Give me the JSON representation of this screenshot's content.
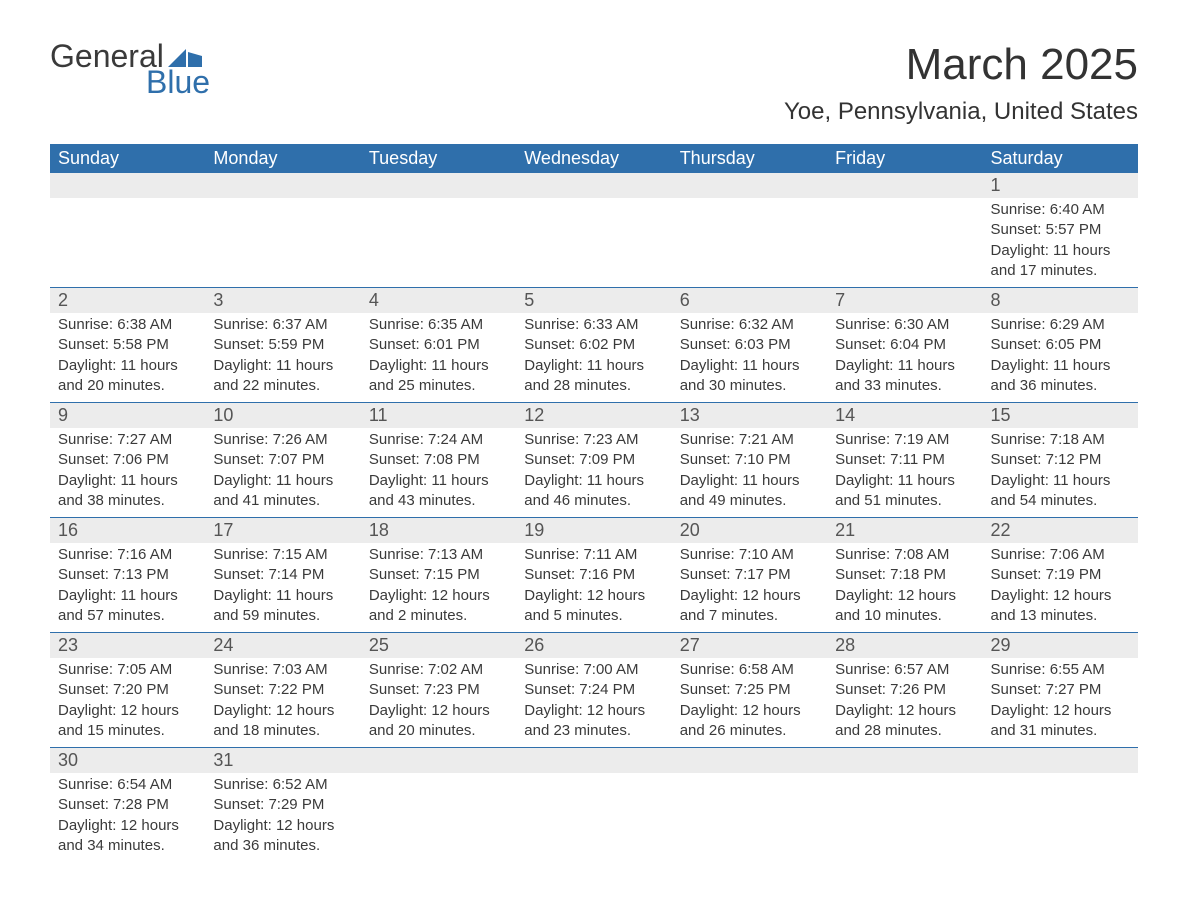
{
  "logo": {
    "word1": "General",
    "word2": "Blue"
  },
  "title": "March 2025",
  "location": "Yoe, Pennsylvania, United States",
  "colors": {
    "header_bg": "#2f6fab",
    "header_fg": "#ffffff",
    "daynum_bg": "#ececec",
    "row_border": "#2f6fab",
    "text": "#3a3a3a",
    "logo_blue": "#2f6fab"
  },
  "typography": {
    "month_title_pt": 44,
    "location_pt": 24,
    "header_pt": 18,
    "daynum_pt": 18,
    "body_pt": 15
  },
  "layout": {
    "type": "calendar-table",
    "columns": 7,
    "week_rows": 6
  },
  "weekdays": [
    "Sunday",
    "Monday",
    "Tuesday",
    "Wednesday",
    "Thursday",
    "Friday",
    "Saturday"
  ],
  "weeks": [
    [
      null,
      null,
      null,
      null,
      null,
      null,
      {
        "n": "1",
        "sr": "Sunrise: 6:40 AM",
        "ss": "Sunset: 5:57 PM",
        "d1": "Daylight: 11 hours",
        "d2": "and 17 minutes."
      }
    ],
    [
      {
        "n": "2",
        "sr": "Sunrise: 6:38 AM",
        "ss": "Sunset: 5:58 PM",
        "d1": "Daylight: 11 hours",
        "d2": "and 20 minutes."
      },
      {
        "n": "3",
        "sr": "Sunrise: 6:37 AM",
        "ss": "Sunset: 5:59 PM",
        "d1": "Daylight: 11 hours",
        "d2": "and 22 minutes."
      },
      {
        "n": "4",
        "sr": "Sunrise: 6:35 AM",
        "ss": "Sunset: 6:01 PM",
        "d1": "Daylight: 11 hours",
        "d2": "and 25 minutes."
      },
      {
        "n": "5",
        "sr": "Sunrise: 6:33 AM",
        "ss": "Sunset: 6:02 PM",
        "d1": "Daylight: 11 hours",
        "d2": "and 28 minutes."
      },
      {
        "n": "6",
        "sr": "Sunrise: 6:32 AM",
        "ss": "Sunset: 6:03 PM",
        "d1": "Daylight: 11 hours",
        "d2": "and 30 minutes."
      },
      {
        "n": "7",
        "sr": "Sunrise: 6:30 AM",
        "ss": "Sunset: 6:04 PM",
        "d1": "Daylight: 11 hours",
        "d2": "and 33 minutes."
      },
      {
        "n": "8",
        "sr": "Sunrise: 6:29 AM",
        "ss": "Sunset: 6:05 PM",
        "d1": "Daylight: 11 hours",
        "d2": "and 36 minutes."
      }
    ],
    [
      {
        "n": "9",
        "sr": "Sunrise: 7:27 AM",
        "ss": "Sunset: 7:06 PM",
        "d1": "Daylight: 11 hours",
        "d2": "and 38 minutes."
      },
      {
        "n": "10",
        "sr": "Sunrise: 7:26 AM",
        "ss": "Sunset: 7:07 PM",
        "d1": "Daylight: 11 hours",
        "d2": "and 41 minutes."
      },
      {
        "n": "11",
        "sr": "Sunrise: 7:24 AM",
        "ss": "Sunset: 7:08 PM",
        "d1": "Daylight: 11 hours",
        "d2": "and 43 minutes."
      },
      {
        "n": "12",
        "sr": "Sunrise: 7:23 AM",
        "ss": "Sunset: 7:09 PM",
        "d1": "Daylight: 11 hours",
        "d2": "and 46 minutes."
      },
      {
        "n": "13",
        "sr": "Sunrise: 7:21 AM",
        "ss": "Sunset: 7:10 PM",
        "d1": "Daylight: 11 hours",
        "d2": "and 49 minutes."
      },
      {
        "n": "14",
        "sr": "Sunrise: 7:19 AM",
        "ss": "Sunset: 7:11 PM",
        "d1": "Daylight: 11 hours",
        "d2": "and 51 minutes."
      },
      {
        "n": "15",
        "sr": "Sunrise: 7:18 AM",
        "ss": "Sunset: 7:12 PM",
        "d1": "Daylight: 11 hours",
        "d2": "and 54 minutes."
      }
    ],
    [
      {
        "n": "16",
        "sr": "Sunrise: 7:16 AM",
        "ss": "Sunset: 7:13 PM",
        "d1": "Daylight: 11 hours",
        "d2": "and 57 minutes."
      },
      {
        "n": "17",
        "sr": "Sunrise: 7:15 AM",
        "ss": "Sunset: 7:14 PM",
        "d1": "Daylight: 11 hours",
        "d2": "and 59 minutes."
      },
      {
        "n": "18",
        "sr": "Sunrise: 7:13 AM",
        "ss": "Sunset: 7:15 PM",
        "d1": "Daylight: 12 hours",
        "d2": "and 2 minutes."
      },
      {
        "n": "19",
        "sr": "Sunrise: 7:11 AM",
        "ss": "Sunset: 7:16 PM",
        "d1": "Daylight: 12 hours",
        "d2": "and 5 minutes."
      },
      {
        "n": "20",
        "sr": "Sunrise: 7:10 AM",
        "ss": "Sunset: 7:17 PM",
        "d1": "Daylight: 12 hours",
        "d2": "and 7 minutes."
      },
      {
        "n": "21",
        "sr": "Sunrise: 7:08 AM",
        "ss": "Sunset: 7:18 PM",
        "d1": "Daylight: 12 hours",
        "d2": "and 10 minutes."
      },
      {
        "n": "22",
        "sr": "Sunrise: 7:06 AM",
        "ss": "Sunset: 7:19 PM",
        "d1": "Daylight: 12 hours",
        "d2": "and 13 minutes."
      }
    ],
    [
      {
        "n": "23",
        "sr": "Sunrise: 7:05 AM",
        "ss": "Sunset: 7:20 PM",
        "d1": "Daylight: 12 hours",
        "d2": "and 15 minutes."
      },
      {
        "n": "24",
        "sr": "Sunrise: 7:03 AM",
        "ss": "Sunset: 7:22 PM",
        "d1": "Daylight: 12 hours",
        "d2": "and 18 minutes."
      },
      {
        "n": "25",
        "sr": "Sunrise: 7:02 AM",
        "ss": "Sunset: 7:23 PM",
        "d1": "Daylight: 12 hours",
        "d2": "and 20 minutes."
      },
      {
        "n": "26",
        "sr": "Sunrise: 7:00 AM",
        "ss": "Sunset: 7:24 PM",
        "d1": "Daylight: 12 hours",
        "d2": "and 23 minutes."
      },
      {
        "n": "27",
        "sr": "Sunrise: 6:58 AM",
        "ss": "Sunset: 7:25 PM",
        "d1": "Daylight: 12 hours",
        "d2": "and 26 minutes."
      },
      {
        "n": "28",
        "sr": "Sunrise: 6:57 AM",
        "ss": "Sunset: 7:26 PM",
        "d1": "Daylight: 12 hours",
        "d2": "and 28 minutes."
      },
      {
        "n": "29",
        "sr": "Sunrise: 6:55 AM",
        "ss": "Sunset: 7:27 PM",
        "d1": "Daylight: 12 hours",
        "d2": "and 31 minutes."
      }
    ],
    [
      {
        "n": "30",
        "sr": "Sunrise: 6:54 AM",
        "ss": "Sunset: 7:28 PM",
        "d1": "Daylight: 12 hours",
        "d2": "and 34 minutes."
      },
      {
        "n": "31",
        "sr": "Sunrise: 6:52 AM",
        "ss": "Sunset: 7:29 PM",
        "d1": "Daylight: 12 hours",
        "d2": "and 36 minutes."
      },
      null,
      null,
      null,
      null,
      null
    ]
  ]
}
